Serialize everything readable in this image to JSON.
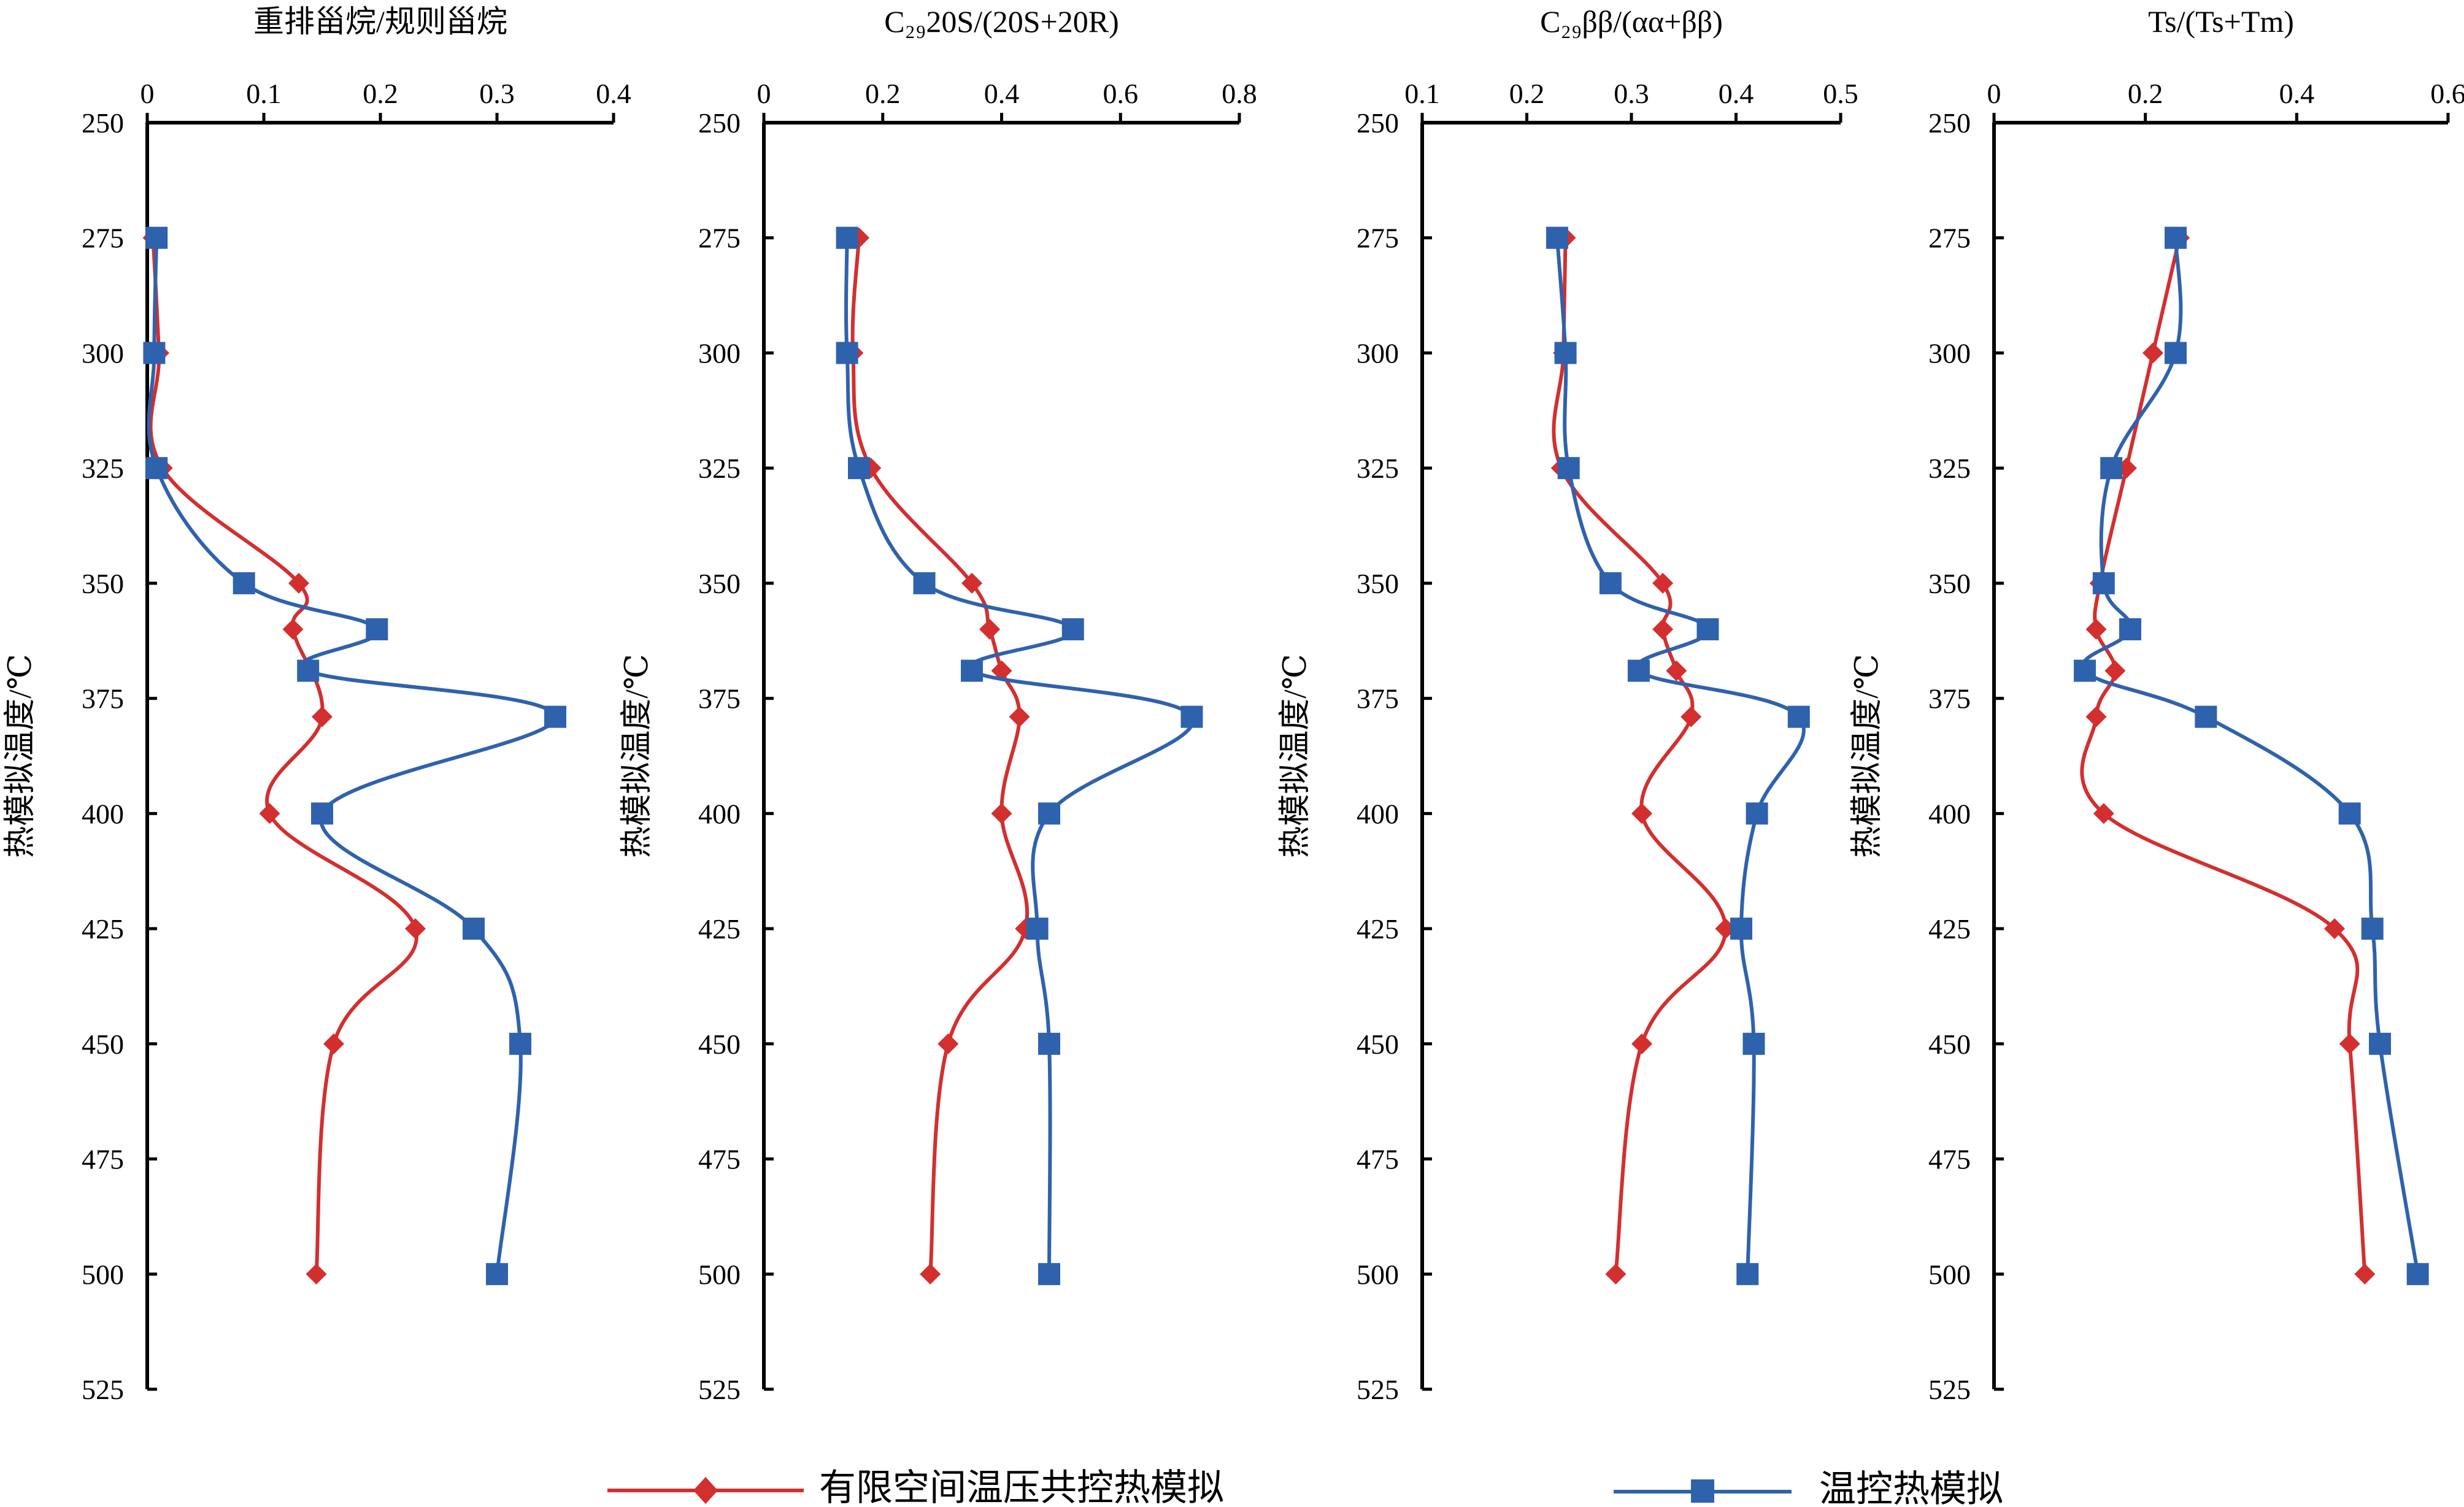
{
  "chart_data": [
    {
      "type": "line",
      "title": "重排甾烷/规则甾烷",
      "ylabel": "热模拟温度/℃",
      "xlim": [
        0,
        0.4
      ],
      "xticks": [
        0,
        0.1,
        0.2,
        0.3,
        0.4
      ],
      "xtick_labels": [
        "0",
        "0.1",
        "0.2",
        "0.3",
        "0.4"
      ],
      "ylim": [
        250,
        525
      ],
      "yticks": [
        250,
        275,
        300,
        325,
        350,
        375,
        400,
        425,
        450,
        475,
        500,
        525
      ],
      "ytick_labels": [
        "250",
        "275",
        "300",
        "325",
        "350",
        "375",
        "400",
        "425",
        "450",
        "475",
        "500",
        "525"
      ],
      "series": [
        {
          "name": "有限空间温压共控热模拟",
          "color": "#d32f2f",
          "marker": "diamond",
          "x": [
            0.005,
            0.01,
            0.013,
            0.13,
            0.125,
            0.15,
            0.105,
            0.23,
            0.16,
            0.145
          ],
          "y": [
            275,
            300,
            325,
            350,
            360,
            379,
            400,
            425,
            450,
            500
          ]
        },
        {
          "name": "温控热模拟",
          "color": "#2f62ad",
          "marker": "square",
          "x": [
            0.008,
            0.006,
            0.008,
            0.083,
            0.197,
            0.138,
            0.35,
            0.15,
            0.28,
            0.32,
            0.3
          ],
          "y": [
            275,
            300,
            325,
            350,
            360,
            369,
            379,
            400,
            425,
            450,
            500
          ]
        }
      ]
    },
    {
      "type": "line",
      "title": "C₂₉20S/(20S+20R)",
      "ylabel": "热模拟温度/℃",
      "xlim": [
        0,
        0.8
      ],
      "xticks": [
        0,
        0.2,
        0.4,
        0.6,
        0.8
      ],
      "xtick_labels": [
        "0",
        "0.2",
        "0.4",
        "0.6",
        "0.8"
      ],
      "ylim": [
        250,
        525
      ],
      "yticks": [
        250,
        275,
        300,
        325,
        350,
        375,
        400,
        425,
        450,
        475,
        500,
        525
      ],
      "ytick_labels": [
        "250",
        "275",
        "300",
        "325",
        "350",
        "375",
        "400",
        "425",
        "450",
        "475",
        "500",
        "525"
      ],
      "series": [
        {
          "name": "有限空间温压共控热模拟",
          "color": "#d32f2f",
          "marker": "diamond",
          "x": [
            0.16,
            0.15,
            0.18,
            0.35,
            0.38,
            0.4,
            0.43,
            0.4,
            0.44,
            0.31,
            0.28
          ],
          "y": [
            275,
            300,
            325,
            350,
            360,
            369,
            379,
            400,
            425,
            450,
            500
          ]
        },
        {
          "name": "温控热模拟",
          "color": "#2f62ad",
          "marker": "square",
          "x": [
            0.14,
            0.14,
            0.16,
            0.27,
            0.52,
            0.35,
            0.72,
            0.48,
            0.46,
            0.48,
            0.48
          ],
          "y": [
            275,
            300,
            325,
            350,
            360,
            369,
            379,
            400,
            425,
            450,
            500
          ]
        }
      ]
    },
    {
      "type": "line",
      "title": "C₂₉ββ/(αα+ββ)",
      "ylabel": "热模拟温度/℃",
      "xlim": [
        0.1,
        0.5
      ],
      "xticks": [
        0.1,
        0.2,
        0.3,
        0.4,
        0.5
      ],
      "xtick_labels": [
        "0.1",
        "0.2",
        "0.3",
        "0.4",
        "0.5"
      ],
      "ylim": [
        250,
        525
      ],
      "yticks": [
        250,
        275,
        300,
        325,
        350,
        375,
        400,
        425,
        450,
        475,
        500,
        525
      ],
      "ytick_labels": [
        "250",
        "275",
        "300",
        "325",
        "350",
        "375",
        "400",
        "425",
        "450",
        "475",
        "500",
        "525"
      ],
      "series": [
        {
          "name": "有限空间温压共控热模拟",
          "color": "#d32f2f",
          "marker": "diamond",
          "x": [
            0.237,
            0.235,
            0.233,
            0.33,
            0.33,
            0.343,
            0.357,
            0.31,
            0.39,
            0.31,
            0.285
          ],
          "y": [
            275,
            300,
            325,
            350,
            360,
            369,
            379,
            400,
            425,
            450,
            500
          ]
        },
        {
          "name": "温控热模拟",
          "color": "#2f62ad",
          "marker": "square",
          "x": [
            0.229,
            0.237,
            0.24,
            0.28,
            0.373,
            0.307,
            0.46,
            0.42,
            0.405,
            0.417,
            0.411
          ],
          "y": [
            275,
            300,
            325,
            350,
            360,
            369,
            379,
            400,
            425,
            450,
            500
          ]
        }
      ]
    },
    {
      "type": "line",
      "title": "Ts/(Ts+Tm)",
      "ylabel": "热模拟温度/℃",
      "xlim": [
        0,
        0.6
      ],
      "xticks": [
        0,
        0.2,
        0.4,
        0.6
      ],
      "xtick_labels": [
        "0",
        "0.2",
        "0.4",
        "0.6"
      ],
      "ylim": [
        250,
        525
      ],
      "yticks": [
        250,
        275,
        300,
        325,
        350,
        375,
        400,
        425,
        450,
        475,
        500,
        525
      ],
      "ytick_labels": [
        "250",
        "275",
        "300",
        "325",
        "350",
        "375",
        "400",
        "425",
        "450",
        "475",
        "500",
        "525"
      ],
      "series": [
        {
          "name": "有限空间温压共控热模拟",
          "color": "#d32f2f",
          "marker": "diamond",
          "x": [
            0.245,
            0.21,
            0.175,
            0.14,
            0.135,
            0.16,
            0.135,
            0.145,
            0.45,
            0.47,
            0.49
          ],
          "y": [
            275,
            300,
            325,
            350,
            360,
            369,
            379,
            400,
            425,
            450,
            500
          ]
        },
        {
          "name": "温控热模拟",
          "color": "#2f62ad",
          "marker": "square",
          "x": [
            0.24,
            0.24,
            0.155,
            0.145,
            0.18,
            0.12,
            0.28,
            0.47,
            0.5,
            0.51,
            0.56
          ],
          "y": [
            275,
            300,
            325,
            350,
            360,
            369,
            379,
            400,
            425,
            450,
            500
          ]
        }
      ]
    }
  ],
  "legend": {
    "items": [
      {
        "label": "有限空间温压共控热模拟",
        "color": "#d32f2f",
        "marker": "diamond"
      },
      {
        "label": "温控热模拟",
        "color": "#2f62ad",
        "marker": "square"
      }
    ]
  }
}
